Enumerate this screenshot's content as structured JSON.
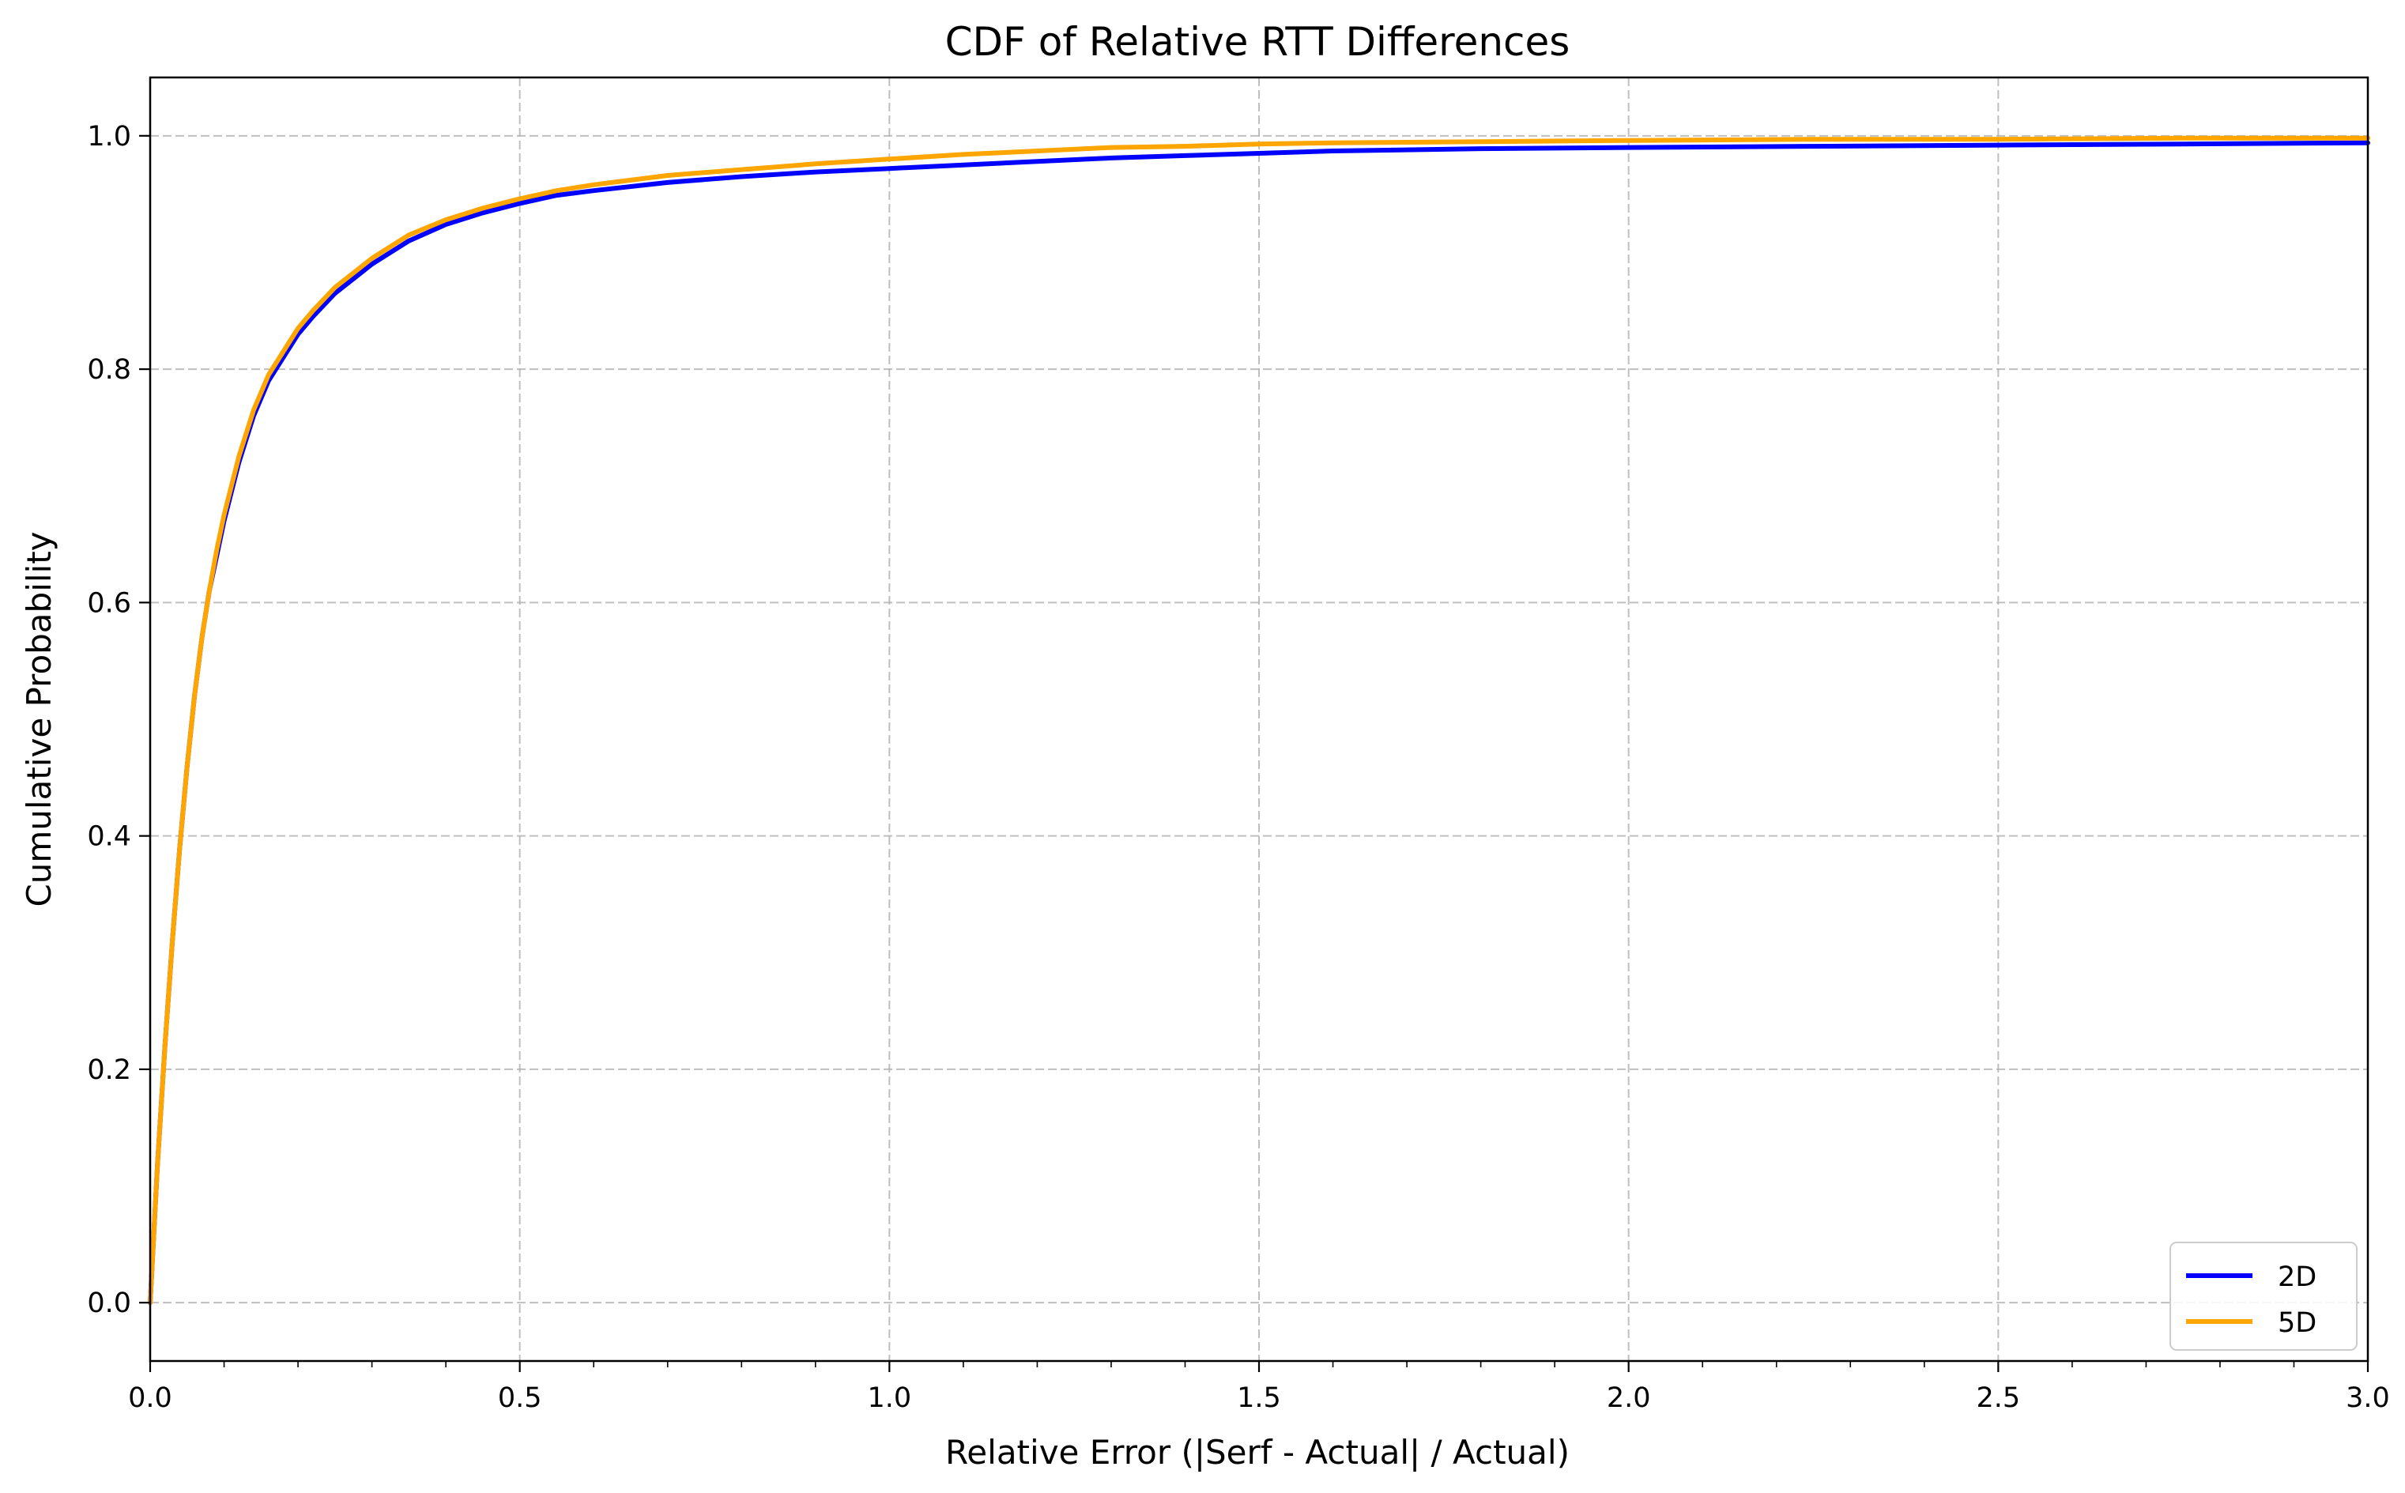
{
  "chart_data": {
    "type": "line",
    "title": "CDF of Relative RTT Differences",
    "xlabel": "Relative Error (|Serf - Actual| / Actual)",
    "ylabel": "Cumulative Probability",
    "xlim": [
      0.0,
      3.0
    ],
    "ylim": [
      -0.05,
      1.05
    ],
    "xticks": [
      0.0,
      0.5,
      1.0,
      1.5,
      2.0,
      2.5,
      3.0
    ],
    "xtick_labels": [
      "0.0",
      "0.5",
      "1.0",
      "1.5",
      "2.0",
      "2.5",
      "3.0"
    ],
    "x_minor_ticks": [
      0.1,
      0.2,
      0.3,
      0.4,
      0.6,
      0.7,
      0.8,
      0.9,
      1.1,
      1.2,
      1.3,
      1.4,
      1.6,
      1.7,
      1.8,
      1.9,
      2.1,
      2.2,
      2.3,
      2.4,
      2.6,
      2.7,
      2.8,
      2.9
    ],
    "yticks": [
      0.0,
      0.2,
      0.4,
      0.6,
      0.8,
      1.0
    ],
    "ytick_labels": [
      "0.0",
      "0.2",
      "0.4",
      "0.6",
      "0.8",
      "1.0"
    ],
    "grid": true,
    "legend_position": "bottom-right",
    "series": [
      {
        "name": "2D",
        "color": "#0000ff",
        "x": [
          0.0,
          0.01,
          0.02,
          0.03,
          0.04,
          0.05,
          0.06,
          0.07,
          0.08,
          0.09,
          0.1,
          0.12,
          0.14,
          0.16,
          0.18,
          0.2,
          0.22,
          0.25,
          0.28,
          0.3,
          0.35,
          0.4,
          0.45,
          0.5,
          0.55,
          0.6,
          0.7,
          0.8,
          0.9,
          1.0,
          1.1,
          1.2,
          1.3,
          1.4,
          1.5,
          1.6,
          1.8,
          2.0,
          2.25,
          2.5,
          2.75,
          3.0
        ],
        "y": [
          0.0,
          0.12,
          0.22,
          0.31,
          0.39,
          0.46,
          0.52,
          0.57,
          0.61,
          0.64,
          0.67,
          0.72,
          0.76,
          0.79,
          0.81,
          0.83,
          0.845,
          0.865,
          0.88,
          0.89,
          0.91,
          0.924,
          0.934,
          0.942,
          0.949,
          0.953,
          0.96,
          0.965,
          0.969,
          0.972,
          0.975,
          0.978,
          0.981,
          0.983,
          0.985,
          0.987,
          0.989,
          0.99,
          0.991,
          0.992,
          0.993,
          0.994
        ]
      },
      {
        "name": "5D",
        "color": "#ffa500",
        "x": [
          0.0,
          0.01,
          0.02,
          0.03,
          0.04,
          0.05,
          0.06,
          0.07,
          0.08,
          0.09,
          0.1,
          0.12,
          0.14,
          0.16,
          0.18,
          0.2,
          0.22,
          0.25,
          0.28,
          0.3,
          0.35,
          0.4,
          0.45,
          0.5,
          0.55,
          0.6,
          0.7,
          0.8,
          0.9,
          1.0,
          1.1,
          1.2,
          1.3,
          1.4,
          1.5,
          1.6,
          1.8,
          2.0,
          2.25,
          2.5,
          2.75,
          3.0
        ],
        "y": [
          0.0,
          0.12,
          0.22,
          0.31,
          0.39,
          0.46,
          0.52,
          0.57,
          0.61,
          0.645,
          0.675,
          0.725,
          0.765,
          0.795,
          0.815,
          0.835,
          0.85,
          0.87,
          0.885,
          0.895,
          0.915,
          0.928,
          0.938,
          0.946,
          0.953,
          0.958,
          0.966,
          0.971,
          0.976,
          0.98,
          0.984,
          0.987,
          0.99,
          0.991,
          0.993,
          0.994,
          0.995,
          0.996,
          0.997,
          0.997,
          0.998,
          0.998
        ]
      }
    ]
  }
}
